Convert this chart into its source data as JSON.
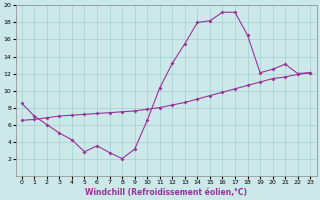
{
  "xlabel": "Windchill (Refroidissement éolien,°C)",
  "bg_color": "#cce8e8",
  "grid_color": "#aad4d4",
  "line_color": "#993399",
  "xlim": [
    -0.5,
    23.5
  ],
  "ylim": [
    0,
    20
  ],
  "yticks": [
    2,
    4,
    6,
    8,
    10,
    12,
    14,
    16,
    18,
    20
  ],
  "xticks": [
    0,
    1,
    2,
    3,
    4,
    5,
    6,
    7,
    8,
    9,
    10,
    11,
    12,
    13,
    14,
    15,
    16,
    17,
    18,
    19,
    20,
    21,
    22,
    23
  ],
  "curve1_x": [
    0,
    1,
    2,
    3,
    4,
    5,
    6,
    7,
    8,
    9,
    10,
    11,
    12,
    13,
    14,
    15,
    16,
    17,
    18,
    19,
    20,
    21,
    22,
    23
  ],
  "curve1_y": [
    8.5,
    7.0,
    6.0,
    5.0,
    4.2,
    2.8,
    3.5,
    2.7,
    2.0,
    3.1,
    6.5,
    10.3,
    13.2,
    15.5,
    18.0,
    18.2,
    19.2,
    19.2,
    16.5,
    12.1,
    12.5,
    13.1,
    12.0,
    12.1
  ],
  "curve2_x": [
    0,
    1,
    2,
    3,
    4,
    5,
    6,
    7,
    8,
    9,
    10,
    11,
    12,
    13,
    14,
    15,
    16,
    17,
    18,
    19,
    20,
    21,
    22,
    23
  ],
  "curve2_y": [
    6.5,
    6.6,
    6.8,
    7.0,
    7.1,
    7.2,
    7.3,
    7.4,
    7.5,
    7.6,
    7.8,
    8.0,
    8.3,
    8.6,
    9.0,
    9.4,
    9.8,
    10.2,
    10.6,
    11.0,
    11.4,
    11.6,
    11.9,
    12.1
  ],
  "xlabel_fontsize": 5.5,
  "tick_fontsize": 4.5,
  "marker_size": 2.0,
  "line_width": 0.8
}
